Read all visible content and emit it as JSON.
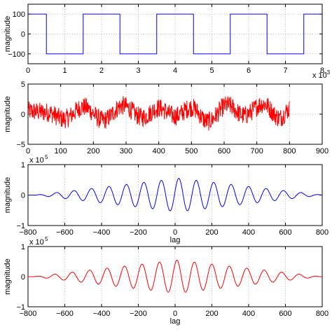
{
  "chart_data": [
    {
      "type": "line",
      "title": "",
      "xlabel": "",
      "ylabel": "magnitude",
      "xlim": [
        0,
        8
      ],
      "ylim": [
        -150,
        150
      ],
      "x_exponent": "-3",
      "xticks": [
        "0",
        "1",
        "2",
        "3",
        "4",
        "5",
        "6",
        "7",
        "8"
      ],
      "yticks": [
        "100",
        "0",
        "−100"
      ],
      "grid": true,
      "color": "#0000ff",
      "series": [
        {
          "values_description": "square wave",
          "x": [
            0,
            0.5,
            0.5,
            1.5,
            1.5,
            2.5,
            2.5,
            3.5,
            3.5,
            4.5,
            4.5,
            5.5,
            5.5,
            6.5,
            6.5,
            7.5,
            7.5,
            8
          ],
          "y": [
            100,
            100,
            -100,
            -100,
            100,
            100,
            -100,
            -100,
            100,
            100,
            -100,
            -100,
            100,
            100,
            -100,
            -100,
            100,
            100
          ]
        }
      ]
    },
    {
      "type": "line",
      "title": "",
      "xlabel": "",
      "ylabel": "magnitude",
      "xlim": [
        0,
        900
      ],
      "ylim": [
        -5,
        5
      ],
      "xticks": [
        "0",
        "100",
        "200",
        "300",
        "400",
        "500",
        "600",
        "700",
        "800",
        "900"
      ],
      "yticks": [
        "5",
        "0",
        "−5"
      ],
      "grid": true,
      "color": "#ff0000",
      "series": [
        {
          "n_points": 800,
          "x_range": [
            0,
            800
          ],
          "trend_x": [
            0,
            60,
            110,
            170,
            230,
            290,
            350,
            400,
            450,
            500,
            550,
            610,
            660,
            720,
            770,
            800
          ],
          "trend_y": [
            0.5,
            0.3,
            -0.8,
            1.2,
            -1.0,
            1.4,
            -0.5,
            1.0,
            -0.3,
            1.1,
            -1.2,
            1.5,
            -0.2,
            1.7,
            -0.6,
            0.8
          ],
          "noise_amplitude": 1.0
        }
      ]
    },
    {
      "type": "line",
      "title": "",
      "xlabel": "lag",
      "ylabel": "magnitude",
      "xlim": [
        -800,
        800
      ],
      "ylim": [
        -1,
        1
      ],
      "y_exponent": "5",
      "xticks": [
        "−800",
        "−600",
        "−400",
        "−200",
        "0",
        "200",
        "400",
        "600",
        "800"
      ],
      "yticks": [
        "1",
        "0",
        "−1"
      ],
      "grid": true,
      "color": "#0000ff",
      "series": [
        {
          "x_range": [
            -800,
            800
          ],
          "peak": 0.55,
          "peak_lag": 20,
          "period": 95,
          "envelope_halfwidth": 780
        }
      ]
    },
    {
      "type": "line",
      "title": "",
      "xlabel": "lag",
      "ylabel": "magnitude",
      "xlim": [
        -800,
        800
      ],
      "ylim": [
        -1,
        1
      ],
      "y_exponent": "5",
      "xticks": [
        "−800",
        "−600",
        "−400",
        "−200",
        "0",
        "200",
        "400",
        "600",
        "800"
      ],
      "yticks": [
        "1",
        "0",
        "−1"
      ],
      "grid": true,
      "color": "#ff0000",
      "series": [
        {
          "x_range": [
            -800,
            800
          ],
          "peak": 0.55,
          "peak_lag": 10,
          "period": 95,
          "envelope_halfwidth": 780
        }
      ]
    }
  ]
}
